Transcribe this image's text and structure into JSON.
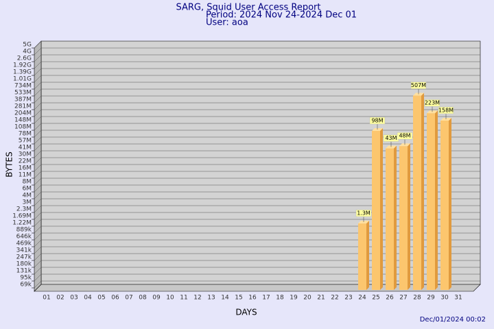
{
  "chart_data": {
    "type": "bar3d",
    "title": "SARG, Squid User Access Report",
    "subtitle": "Period: 2024 Nov 24-2024 Dec 01",
    "user": "User: aoa",
    "y_label": "BYTES",
    "x_label": "DAYS",
    "footer": "Dec/01/2024 00:02",
    "categories": [
      "01",
      "02",
      "03",
      "04",
      "05",
      "06",
      "07",
      "08",
      "09",
      "10",
      "11",
      "12",
      "13",
      "14",
      "15",
      "16",
      "17",
      "18",
      "19",
      "20",
      "21",
      "22",
      "23",
      "24",
      "25",
      "26",
      "27",
      "28",
      "29",
      "30",
      "31"
    ],
    "values": [
      null,
      null,
      null,
      null,
      null,
      null,
      null,
      null,
      null,
      null,
      null,
      null,
      null,
      null,
      null,
      null,
      null,
      null,
      null,
      null,
      null,
      null,
      null,
      1300000,
      98000000,
      43000000,
      48000000,
      507000000,
      223000000,
      158000000,
      null
    ],
    "value_labels": [
      null,
      null,
      null,
      null,
      null,
      null,
      null,
      null,
      null,
      null,
      null,
      null,
      null,
      null,
      null,
      null,
      null,
      null,
      null,
      null,
      null,
      null,
      null,
      "1.3M",
      "98M",
      "43M",
      "48M",
      "507M",
      "223M",
      "158M",
      null
    ],
    "color": "#fcc66e",
    "ylim": [
      0,
      5000000000
    ],
    "yticks": [
      {
        "value": 69000,
        "label": "69k"
      },
      {
        "value": 95000,
        "label": "95k"
      },
      {
        "value": 131000,
        "label": "131k"
      },
      {
        "value": 180000,
        "label": "180k"
      },
      {
        "value": 247000,
        "label": "247k"
      },
      {
        "value": 341000,
        "label": "341k"
      },
      {
        "value": 469000,
        "label": "469k"
      },
      {
        "value": 646000,
        "label": "646k"
      },
      {
        "value": 889000,
        "label": "889k"
      },
      {
        "value": 1220000,
        "label": "1.22M"
      },
      {
        "value": 1690000,
        "label": "1.69M"
      },
      {
        "value": 2300000,
        "label": "2.3M"
      },
      {
        "value": 3000000,
        "label": "3M"
      },
      {
        "value": 4000000,
        "label": "4M"
      },
      {
        "value": 6000000,
        "label": "6M"
      },
      {
        "value": 8000000,
        "label": "8M"
      },
      {
        "value": 11000000,
        "label": "11M"
      },
      {
        "value": 16000000,
        "label": "16M"
      },
      {
        "value": 22000000,
        "label": "22M"
      },
      {
        "value": 30000000,
        "label": "30M"
      },
      {
        "value": 41000000,
        "label": "41M"
      },
      {
        "value": 57000000,
        "label": "57M"
      },
      {
        "value": 78000000,
        "label": "78M"
      },
      {
        "value": 108000000,
        "label": "108M"
      },
      {
        "value": 148000000,
        "label": "148M"
      },
      {
        "value": 204000000,
        "label": "204M"
      },
      {
        "value": 281000000,
        "label": "281M"
      },
      {
        "value": 387000000,
        "label": "387M"
      },
      {
        "value": 533000000,
        "label": "533M"
      },
      {
        "value": 734000000,
        "label": "734M"
      },
      {
        "value": 1010000000,
        "label": "1.01G"
      },
      {
        "value": 1390000000,
        "label": "1.39G"
      },
      {
        "value": 1920000000,
        "label": "1.92G"
      },
      {
        "value": 2600000000,
        "label": "2.6G"
      },
      {
        "value": 4000000000,
        "label": "4G"
      },
      {
        "value": 5000000000,
        "label": "5G"
      }
    ],
    "grid": true
  }
}
